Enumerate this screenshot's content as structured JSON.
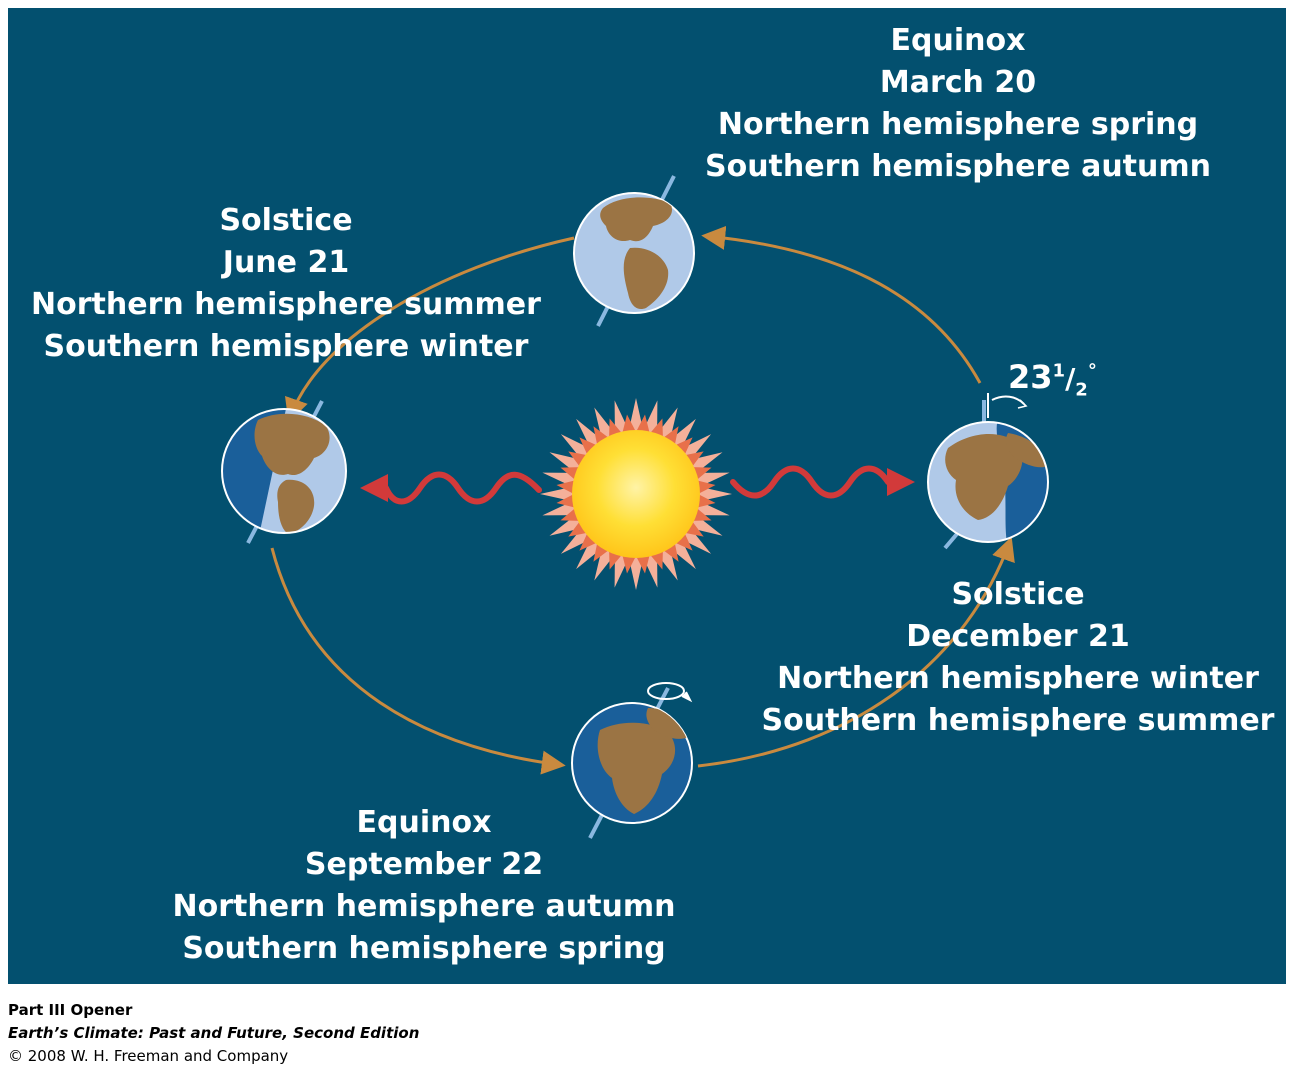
{
  "colors": {
    "background": "#03506f",
    "ocean_lit": "#b0c9e8",
    "ocean_dark": "#1a5f9a",
    "land": "#9b7444",
    "orbit": "#c98a3f",
    "ray": "#d23a3a",
    "sun_core": "#ffd21f",
    "sun_rays": "#f4b09a",
    "axis": "#8ab8e0"
  },
  "labels": {
    "march": {
      "title": "Equinox",
      "date": "March 20",
      "north": "Northern hemisphere spring",
      "south": "Southern hemisphere autumn"
    },
    "june": {
      "title": "Solstice",
      "date": "June 21",
      "north": "Northern hemisphere summer",
      "south": "Southern hemisphere winter"
    },
    "december": {
      "title": "Solstice",
      "date": "December 21",
      "north": "Northern hemisphere winter",
      "south": "Southern hemisphere summer"
    },
    "september": {
      "title": "Equinox",
      "date": "September 22",
      "north": "Northern hemisphere autumn",
      "south": "Southern hemisphere spring"
    }
  },
  "tilt": {
    "whole": "23",
    "num": "1",
    "den": "2",
    "unit": "°"
  },
  "caption": {
    "part": "Part III Opener",
    "book": "Earth’s Climate: Past and Future, Second Edition",
    "copyright": "© 2008 W. H. Freeman and Company"
  },
  "icons": [
    "sun-icon",
    "earth-globe-icon",
    "orbit-arrow-icon",
    "radiation-ray-icon",
    "rotation-arrow-icon",
    "tilt-angle-icon"
  ]
}
